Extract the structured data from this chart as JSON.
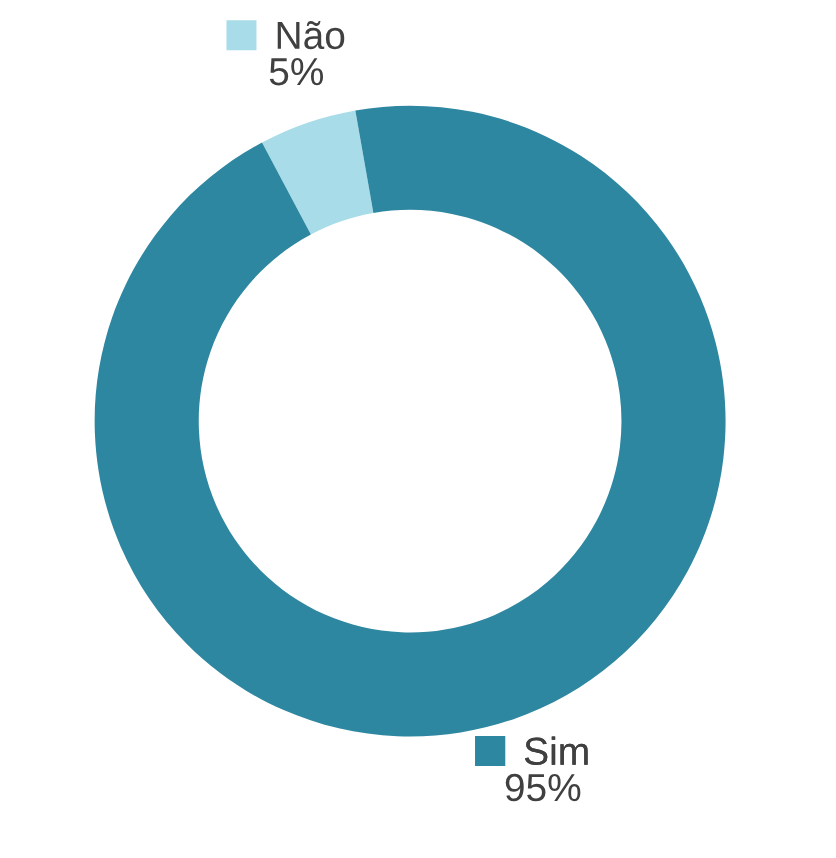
{
  "chart_data": {
    "type": "donut",
    "categories": [
      "Não",
      "Sim"
    ],
    "values": [
      5,
      95
    ],
    "colors": [
      "#a8dce8",
      "#2e87a0"
    ],
    "value_labels": [
      "5%",
      "95%"
    ],
    "legend": "top left"
  }
}
